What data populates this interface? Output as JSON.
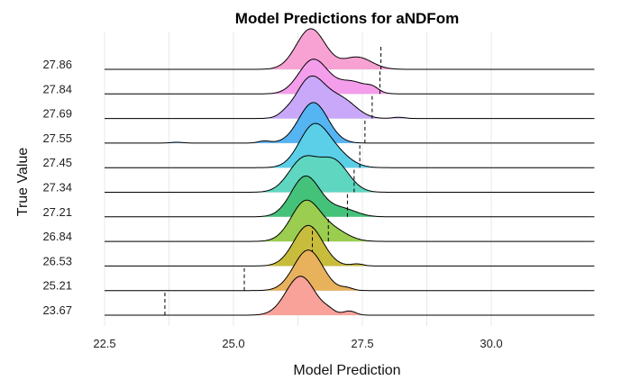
{
  "chart_data": {
    "type": "ridgeline",
    "title": "Model Predictions for aNDFom",
    "xlabel": "Model Prediction",
    "ylabel": "True Value",
    "xlim": [
      22.5,
      32.0
    ],
    "xticks": [
      "22.5",
      "25.0",
      "27.5",
      "30.0"
    ],
    "xtick_values": [
      22.5,
      25.0,
      27.5,
      30.0
    ],
    "grid": true,
    "series": [
      {
        "name": "23.67",
        "true_value": 23.67,
        "color": "#F8A29A",
        "density": [
          [
            26.3,
            0.96
          ],
          [
            26.85,
            0.08
          ],
          [
            27.25,
            0.1
          ]
        ]
      },
      {
        "name": "25.21",
        "true_value": 25.21,
        "color": "#E8B15C",
        "density": [
          [
            26.45,
            1.0
          ],
          [
            27.2,
            0.06
          ]
        ]
      },
      {
        "name": "26.53",
        "true_value": 26.53,
        "color": "#C8BC3C",
        "density": [
          [
            26.45,
            1.0
          ],
          [
            27.4,
            0.05
          ]
        ]
      },
      {
        "name": "26.84",
        "true_value": 26.84,
        "color": "#9ACD50",
        "density": [
          [
            26.4,
            0.98
          ],
          [
            26.95,
            0.25
          ]
        ]
      },
      {
        "name": "27.21",
        "true_value": 27.21,
        "color": "#45C27A",
        "density": [
          [
            26.4,
            1.0
          ],
          [
            27.1,
            0.2
          ]
        ]
      },
      {
        "name": "27.34",
        "true_value": 27.34,
        "color": "#5FD6C0",
        "density": [
          [
            26.35,
            0.8
          ],
          [
            26.95,
            0.75
          ]
        ]
      },
      {
        "name": "27.45",
        "true_value": 27.45,
        "color": "#5BCFE8",
        "density": [
          [
            26.55,
            1.0
          ],
          [
            27.0,
            0.3
          ]
        ]
      },
      {
        "name": "27.55",
        "true_value": 27.55,
        "color": "#55B4F2",
        "density": [
          [
            26.55,
            1.0
          ],
          [
            25.6,
            0.05
          ],
          [
            23.9,
            0.02
          ]
        ]
      },
      {
        "name": "27.69",
        "true_value": 27.69,
        "color": "#C9A8FA",
        "density": [
          [
            26.5,
            1.0
          ],
          [
            27.1,
            0.45
          ],
          [
            26.0,
            0.05
          ],
          [
            28.2,
            0.03
          ]
        ]
      },
      {
        "name": "27.84",
        "true_value": 27.84,
        "color": "#F49DEA",
        "density": [
          [
            26.55,
            0.85
          ],
          [
            27.3,
            0.3
          ],
          [
            27.7,
            0.1
          ]
        ]
      },
      {
        "name": "27.86",
        "true_value": 27.86,
        "color": "#F8A2D4",
        "density": [
          [
            26.5,
            1.0
          ],
          [
            27.4,
            0.3
          ]
        ]
      }
    ]
  }
}
